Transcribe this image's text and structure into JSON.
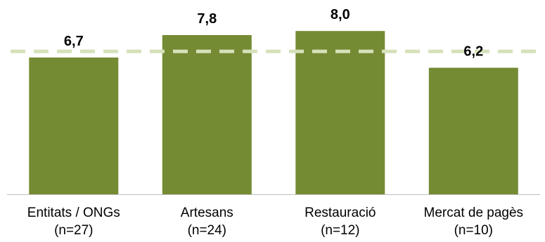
{
  "chart_data": {
    "type": "bar",
    "categories": [
      [
        "Entitats / ONGs",
        "(n=27)"
      ],
      [
        "Artesans",
        "(n=24)"
      ],
      [
        "Restauració",
        "(n=12)"
      ],
      [
        "Mercat de pagès",
        "(n=10)"
      ]
    ],
    "values": [
      6.7,
      7.8,
      8.0,
      6.2
    ],
    "value_labels": [
      "6,7",
      "7,8",
      "8,0",
      "6,2"
    ],
    "reference_line": 7.0,
    "ylim": [
      0,
      8.4
    ],
    "title": "",
    "xlabel": "",
    "ylabel": "",
    "grid": false,
    "legend": "none",
    "colors": {
      "bar": "#748B34",
      "reference_line": "#D5E1B9",
      "axis": "#BFBFBF",
      "text": "#000000"
    }
  }
}
